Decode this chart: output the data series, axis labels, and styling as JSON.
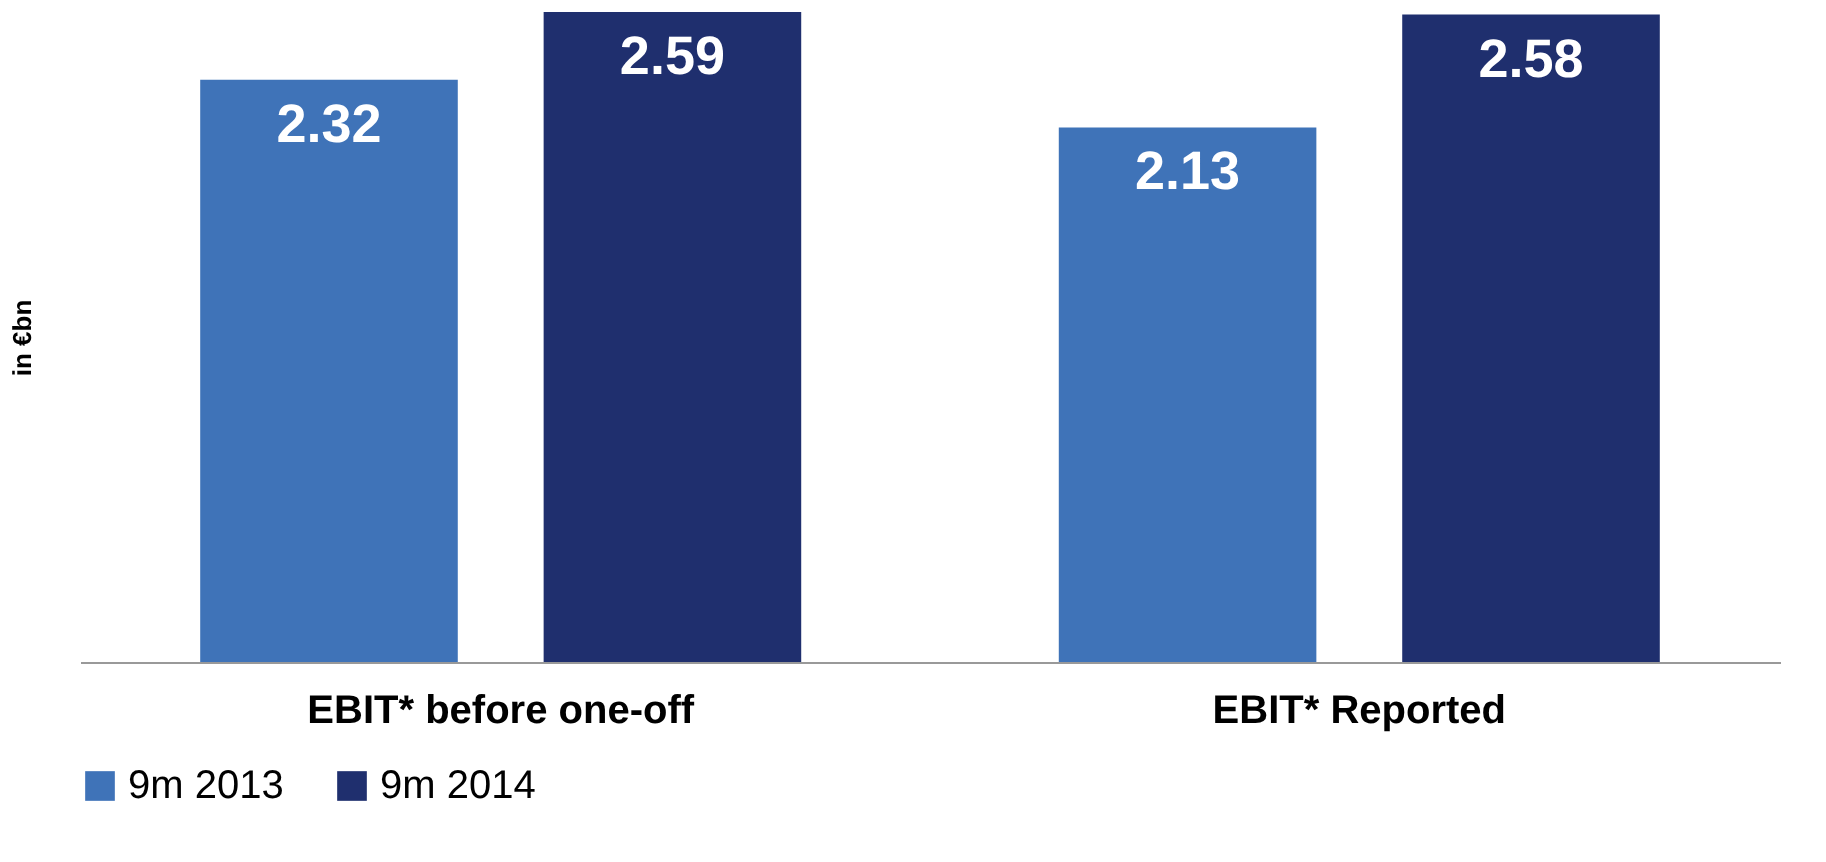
{
  "chart_data": {
    "type": "bar",
    "ylabel": "in €bn",
    "categories": [
      "EBIT* before one-off",
      "EBIT* Reported"
    ],
    "series": [
      {
        "name": "9m 2013",
        "color": "#3f73b8",
        "values": [
          2.32,
          2.13
        ]
      },
      {
        "name": "9m 2014",
        "color": "#1f2f6e",
        "values": [
          2.59,
          2.58
        ]
      }
    ],
    "data_labels": true,
    "grid": false,
    "legend": "bottom"
  }
}
